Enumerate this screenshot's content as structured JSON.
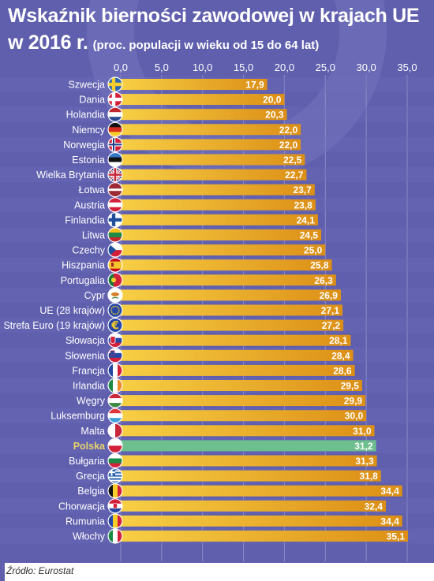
{
  "title": "Wskaźnik bierności zawodowej w krajach UE",
  "subtitle_year": "w 2016 r.",
  "subtitle_note": "(proc. populacji w wieku od 15 do 64 lat)",
  "source": "Źródło: Eurostat",
  "colors": {
    "background": "#5f5fae",
    "bar_light": "#f7cf45",
    "bar_dark": "#dc8f16",
    "highlight_bar": "#6dbf8d",
    "highlight_label": "#e6d36a",
    "row_band": "#6d6dbb"
  },
  "chart_data": {
    "type": "bar",
    "orientation": "horizontal",
    "title": "Wskaźnik bierności zawodowej w krajach UE",
    "xlim": [
      0,
      35
    ],
    "xticks": [
      "0,0",
      "5,0",
      "10,0",
      "15,0",
      "20,0",
      "25,0",
      "30,0",
      "35,0"
    ],
    "grid": true,
    "highlight": "Polska",
    "categories": [
      "Szwecja",
      "Dania",
      "Holandia",
      "Niemcy",
      "Norwegia",
      "Estonia",
      "Wielka Brytania",
      "Łotwa",
      "Austria",
      "Finlandia",
      "Litwa",
      "Czechy",
      "Hiszpania",
      "Portugalia",
      "Cypr",
      "UE (28 krajów)",
      "Strefa Euro (19 krajów)",
      "Słowacja",
      "Słowenia",
      "Francja",
      "Irlandia",
      "Węgry",
      "Luksemburg",
      "Malta",
      "Polska",
      "Bułgaria",
      "Grecja",
      "Belgia",
      "Chorwacja",
      "Rumunia",
      "Włochy"
    ],
    "values": [
      17.9,
      20.0,
      20.3,
      22.0,
      22.0,
      22.5,
      22.7,
      23.7,
      23.8,
      24.1,
      24.5,
      25.0,
      25.8,
      26.3,
      26.9,
      27.1,
      27.2,
      28.1,
      28.4,
      28.6,
      29.5,
      29.9,
      30.0,
      31.0,
      31.2,
      31.3,
      31.8,
      34.4,
      32.4,
      34.4,
      35.1
    ],
    "value_labels": [
      "17,9",
      "20,0",
      "20,3",
      "22,0",
      "22,0",
      "22,5",
      "22,7",
      "23,7",
      "23,8",
      "24,1",
      "24,5",
      "25,0",
      "25,8",
      "26,3",
      "26,9",
      "27,1",
      "27,2",
      "28,1",
      "28,4",
      "28,6",
      "29,5",
      "29,9",
      "30,0",
      "31,0",
      "31,2",
      "31,3",
      "31,8",
      "34,4",
      "32,4",
      "34,4",
      "35,1"
    ],
    "flags": [
      "se",
      "dk",
      "nl",
      "de",
      "no",
      "ee",
      "gb",
      "lv",
      "at",
      "fi",
      "lt",
      "cz",
      "es",
      "pt",
      "cy",
      "eu",
      "euro",
      "sk",
      "si",
      "fr",
      "ie",
      "hu",
      "lu",
      "mt",
      "pl",
      "bg",
      "gr",
      "be",
      "hr",
      "ro",
      "it"
    ]
  }
}
